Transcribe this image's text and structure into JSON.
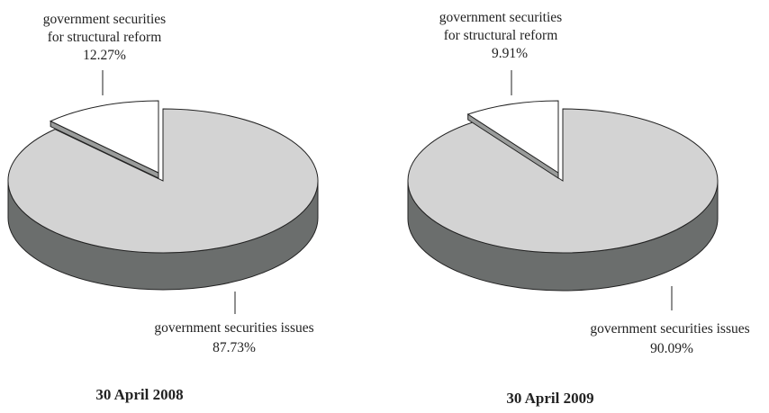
{
  "chart_data": [
    {
      "type": "pie",
      "title": "30 April 2008",
      "slices": [
        {
          "label_lines": [
            "government securities",
            "for structural reform"
          ],
          "value_text": "12.27%",
          "value": 12.27,
          "exploded": true,
          "color": "#ffffff"
        },
        {
          "label_lines": [
            "government securities issues"
          ],
          "value_text": "87.73%",
          "value": 87.73,
          "exploded": false,
          "color": "#d3d3d3"
        }
      ]
    },
    {
      "type": "pie",
      "title": "30 April 2009",
      "slices": [
        {
          "label_lines": [
            "government securities",
            "for structural reform"
          ],
          "value_text": "9.91%",
          "value": 9.91,
          "exploded": true,
          "color": "#ffffff"
        },
        {
          "label_lines": [
            "government securities issues"
          ],
          "value_text": "90.09%",
          "value": 90.09,
          "exploded": false,
          "color": "#d3d3d3"
        }
      ]
    }
  ],
  "colors": {
    "side": "#6b6e6d",
    "outline": "#222222"
  }
}
